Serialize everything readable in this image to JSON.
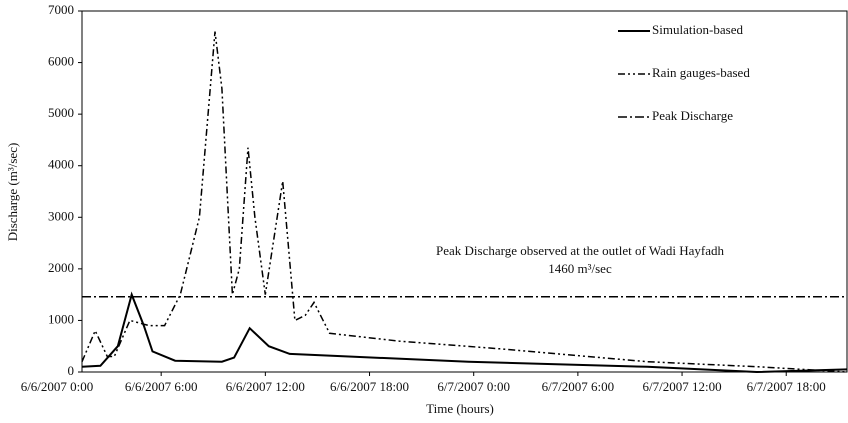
{
  "chart_data": {
    "type": "line",
    "xlabel": "Time (hours)",
    "ylabel": "Discharge (m³/sec)",
    "xlim": [
      1.44,
      45.5
    ],
    "xticks": [
      {
        "value": 0,
        "label": "6/6/2007 0:00"
      },
      {
        "value": 6,
        "label": "6/6/2007 6:00"
      },
      {
        "value": 12,
        "label": "6/6/2007 12:00"
      },
      {
        "value": 18,
        "label": "6/6/2007 18:00"
      },
      {
        "value": 24,
        "label": "6/7/2007 0:00"
      },
      {
        "value": 30,
        "label": "6/7/2007 6:00"
      },
      {
        "value": 36,
        "label": "6/7/2007 12:00"
      },
      {
        "value": 42,
        "label": "6/7/2007 18:00"
      }
    ],
    "ylim": [
      0,
      7000
    ],
    "yticks": [
      0,
      1000,
      2000,
      3000,
      4000,
      5000,
      6000,
      7000
    ],
    "annotations": [
      "Peak Discharge observed at the outlet of Wadi Hayfadh",
      "1460 m³/sec"
    ],
    "series": [
      {
        "name": "Simulation-based",
        "color": "#000000",
        "dash": "solid",
        "x": [
          1.44,
          2.5,
          3.5,
          4.3,
          5.0,
          5.5,
          6.8,
          9.5,
          10.2,
          11.1,
          12.2,
          13.4,
          16.8,
          23.7,
          34,
          40.3,
          45.5
        ],
        "values": [
          100,
          120,
          500,
          1500,
          900,
          400,
          220,
          200,
          280,
          850,
          500,
          350,
          300,
          200,
          100,
          0,
          50
        ]
      },
      {
        "name": "Rain gauges-based",
        "color": "#000000",
        "dash": "dashdotdot",
        "x": [
          1.44,
          2.2,
          2.9,
          3.3,
          4.2,
          5.3,
          6.2,
          7.1,
          8.2,
          9.1,
          9.5,
          10.1,
          10.5,
          11.0,
          11.4,
          12.0,
          13.0,
          13.7,
          14.3,
          14.8,
          15.7,
          19.7,
          25.5,
          34,
          40.4,
          45.5
        ],
        "values": [
          200,
          800,
          300,
          300,
          1000,
          900,
          900,
          1500,
          3000,
          6600,
          5500,
          1500,
          2000,
          4350,
          3000,
          1500,
          3700,
          1000,
          1100,
          1350,
          750,
          600,
          450,
          200,
          100,
          0
        ]
      },
      {
        "name": "Peak Discharge",
        "color": "#000000",
        "dash": "dashdot",
        "x": [
          1.44,
          45.5
        ],
        "values": [
          1460,
          1460
        ]
      }
    ]
  }
}
